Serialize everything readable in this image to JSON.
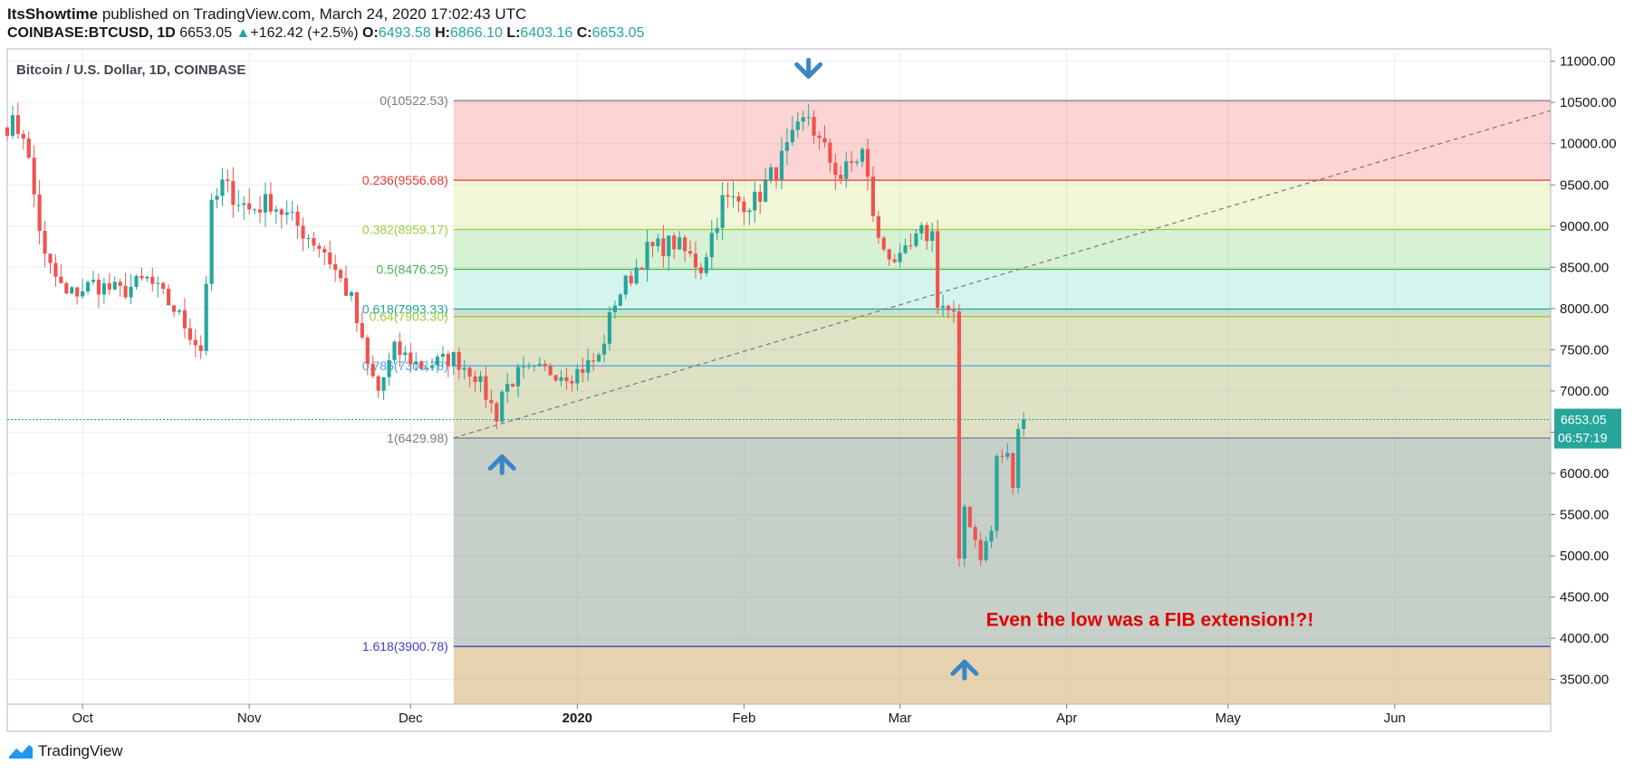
{
  "header": {
    "author": "ItsShowtime",
    "published_text": " published on TradingView.com, March 24, 2020 17:02:43 UTC",
    "symbol": "COINBASE:BTCUSD, 1D",
    "price": "6653.05",
    "change_arrow": "▲",
    "change": "+162.42 (+2.5%)",
    "o_label": "O:",
    "o_value": "6493.58",
    "h_label": "H:",
    "h_value": "6866.10",
    "l_label": "L:",
    "l_value": "6403.16",
    "c_label": "C:",
    "c_value": "6653.05"
  },
  "footer": {
    "brand": "TradingView"
  },
  "colors": {
    "up": "#26a69a",
    "down": "#ef5350",
    "grid": "#e9eef5",
    "annotation": "#e00000",
    "arrow": "#3a87c8"
  },
  "chart_data": {
    "type": "candlestick",
    "title": "Bitcoin / U.S. Dollar, 1D, COINBASE",
    "ylim": [
      3200,
      11150
    ],
    "y_ticks": [
      "11000.00",
      "10500.00",
      "10000.00",
      "9500.00",
      "9000.00",
      "8500.00",
      "8000.00",
      "7500.00",
      "7000.00",
      "6500.00",
      "6000.00",
      "5500.00",
      "5000.00",
      "4500.00",
      "4000.00",
      "3500.00"
    ],
    "y_tick_values": [
      11000,
      10500,
      10000,
      9500,
      9000,
      8500,
      8000,
      7500,
      7000,
      6500,
      6000,
      5500,
      5000,
      4500,
      4000,
      3500
    ],
    "x_ticks": [
      "Oct",
      "Nov",
      "Dec",
      "2020",
      "Feb",
      "Mar",
      "Apr",
      "May",
      "Jun"
    ],
    "x_tick_dates": [
      "2019-10-01",
      "2019-11-01",
      "2019-12-01",
      "2020-01-01",
      "2020-02-01",
      "2020-03-01",
      "2020-04-01",
      "2020-05-01",
      "2020-06-01"
    ],
    "x_range": [
      "2019-09-17",
      "2020-06-30"
    ],
    "last_price": "6653.05",
    "countdown": "06:57:19",
    "fib_start_date": "2019-12-09",
    "fib_levels": [
      {
        "label": "0(10522.53)",
        "value": 10522.53,
        "color": "#787b86",
        "fill": "rgba(239,83,80,0.25)"
      },
      {
        "label": "0.236(9556.68)",
        "value": 9556.68,
        "color": "#e53935",
        "fill": "rgba(205,225,110,0.28)"
      },
      {
        "label": "0.382(8959.17)",
        "value": 8959.17,
        "color": "#9ccc3c",
        "fill": "rgba(120,210,110,0.30)"
      },
      {
        "label": "0.5(8476.25)",
        "value": 8476.25,
        "color": "#4caf50",
        "fill": "rgba(100,220,190,0.28)"
      },
      {
        "label": "0.618(7993.33)",
        "value": 7993.33,
        "color": "#26a69a",
        "fill": "rgba(110,170,120,0.35)"
      },
      {
        "label": "0.64(7903.30)",
        "value": 7903.3,
        "color": "#9ccc3c",
        "fill": "rgba(160,175,90,0.35)"
      },
      {
        "label": "0.786(7305.78)",
        "value": 7305.78,
        "color": "#42a5f5",
        "fill": "rgba(175,180,110,0.40)"
      },
      {
        "label": "1(6429.98)",
        "value": 6429.98,
        "color": "#787b86",
        "fill": "rgba(120,140,125,0.42)"
      },
      {
        "label": "1.618(3900.78)",
        "value": 3900.78,
        "color": "#3f3fd0",
        "fill": "rgba(200,160,80,0.45)"
      }
    ],
    "trendline": {
      "from": {
        "date": "2019-12-09",
        "value": 6429.98
      },
      "to": {
        "date": "2020-06-30",
        "value": 10400
      }
    },
    "annotation": {
      "text": "Even the low was a FIB extension!?!",
      "date": "2020-03-17",
      "value": 4150
    },
    "arrows": [
      {
        "direction": "down",
        "date": "2020-02-13",
        "value": 10850
      },
      {
        "direction": "up",
        "date": "2019-12-18",
        "value": 6170
      },
      {
        "direction": "up",
        "date": "2020-03-13",
        "value": 3680
      }
    ],
    "series_anchors": [
      [
        "2019-09-17",
        10250
      ],
      [
        "2019-09-20",
        10150
      ],
      [
        "2019-09-24",
        8600
      ],
      [
        "2019-09-28",
        8150
      ],
      [
        "2019-10-03",
        8300
      ],
      [
        "2019-10-08",
        8200
      ],
      [
        "2019-10-13",
        8350
      ],
      [
        "2019-10-18",
        8000
      ],
      [
        "2019-10-23",
        7500
      ],
      [
        "2019-10-25",
        9200
      ],
      [
        "2019-10-27",
        9500
      ],
      [
        "2019-11-01",
        9200
      ],
      [
        "2019-11-05",
        9300
      ],
      [
        "2019-11-10",
        9000
      ],
      [
        "2019-11-15",
        8700
      ],
      [
        "2019-11-20",
        8100
      ],
      [
        "2019-11-23",
        7300
      ],
      [
        "2019-11-25",
        7000
      ],
      [
        "2019-11-28",
        7500
      ],
      [
        "2019-12-03",
        7300
      ],
      [
        "2019-12-09",
        7400
      ],
      [
        "2019-12-13",
        7200
      ],
      [
        "2019-12-17",
        6700
      ],
      [
        "2019-12-18",
        7000
      ],
      [
        "2019-12-21",
        7200
      ],
      [
        "2019-12-26",
        7250
      ],
      [
        "2019-12-31",
        7200
      ],
      [
        "2020-01-05",
        7400
      ],
      [
        "2020-01-08",
        8100
      ],
      [
        "2020-01-14",
        8700
      ],
      [
        "2020-01-19",
        8800
      ],
      [
        "2020-01-24",
        8500
      ],
      [
        "2020-01-28",
        9300
      ],
      [
        "2020-02-03",
        9300
      ],
      [
        "2020-02-08",
        9800
      ],
      [
        "2020-02-13",
        10350
      ],
      [
        "2020-02-15",
        10000
      ],
      [
        "2020-02-19",
        9600
      ],
      [
        "2020-02-23",
        9900
      ],
      [
        "2020-02-26",
        8800
      ],
      [
        "2020-03-01",
        8550
      ],
      [
        "2020-03-05",
        8900
      ],
      [
        "2020-03-07",
        8900
      ],
      [
        "2020-03-08",
        8100
      ],
      [
        "2020-03-11",
        7900
      ],
      [
        "2020-03-12",
        4900
      ],
      [
        "2020-03-13",
        5600
      ],
      [
        "2020-03-16",
        5000
      ],
      [
        "2020-03-18",
        5300
      ],
      [
        "2020-03-19",
        6200
      ],
      [
        "2020-03-21",
        6200
      ],
      [
        "2020-03-22",
        5850
      ],
      [
        "2020-03-23",
        6490
      ],
      [
        "2020-03-24",
        6653
      ]
    ]
  }
}
